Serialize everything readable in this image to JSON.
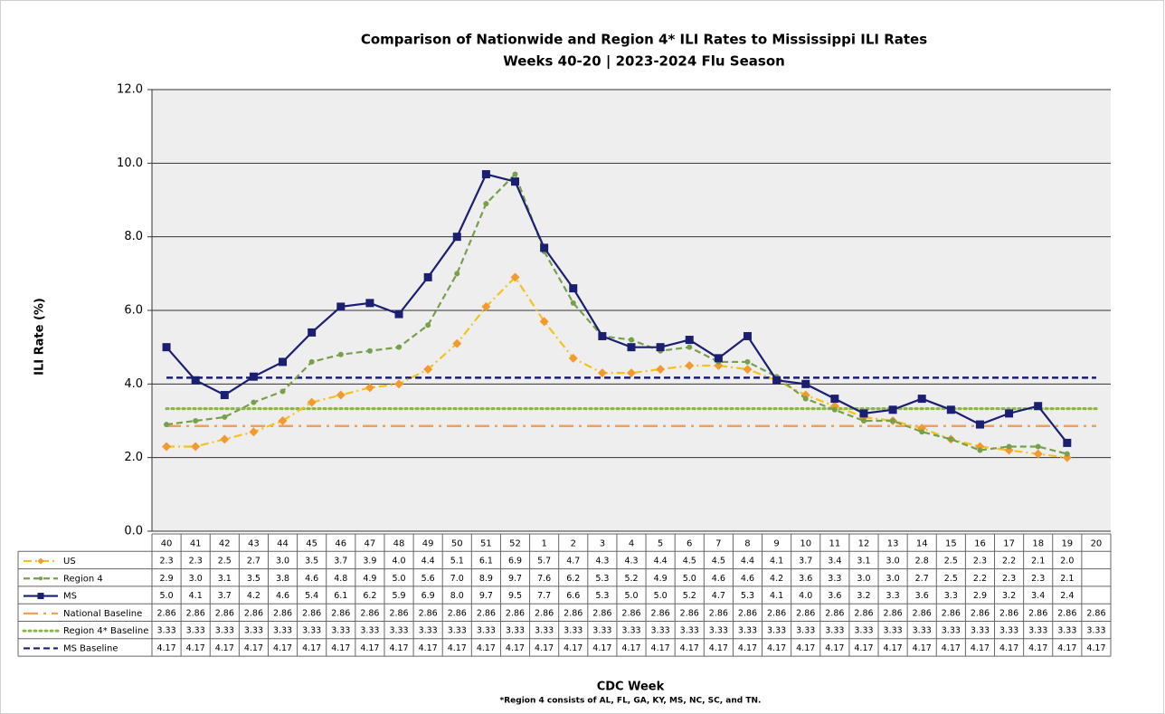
{
  "chart_data": {
    "type": "line",
    "title": "Comparison of Nationwide and Region 4* ILI Rates to Mississippi ILI Rates",
    "subtitle": "Weeks 40-20 | 2023-2024  Flu Season",
    "y_label": "ILI Rate (%)",
    "x_label": "CDC Week",
    "footnote": "*Region 4 consists of AL, FL, GA, KY, MS, NC, SC, and TN.",
    "categories": [
      "40",
      "41",
      "42",
      "43",
      "44",
      "45",
      "46",
      "47",
      "48",
      "49",
      "50",
      "51",
      "52",
      "1",
      "2",
      "3",
      "4",
      "5",
      "6",
      "7",
      "8",
      "9",
      "10",
      "11",
      "12",
      "13",
      "14",
      "15",
      "16",
      "17",
      "18",
      "19",
      "20"
    ],
    "ylim": [
      0,
      12
    ],
    "yticks": [
      {
        "value": 0,
        "label": "0.0"
      },
      {
        "value": 2,
        "label": "2.0"
      },
      {
        "value": 4,
        "label": "4.0"
      },
      {
        "value": 6,
        "label": "6.0"
      },
      {
        "value": 8,
        "label": "8.0"
      },
      {
        "value": 10,
        "label": "10.0"
      },
      {
        "value": 12,
        "label": "12.0"
      }
    ],
    "grid": true,
    "series": [
      {
        "name": "US",
        "color": "#f5c21b",
        "marker_color": "#f39a2e",
        "marker": "diamond",
        "line_style": "dash-dot",
        "values": [
          2.3,
          2.3,
          2.5,
          2.7,
          3.0,
          3.5,
          3.7,
          3.9,
          4.0,
          4.4,
          5.1,
          6.1,
          6.9,
          5.7,
          4.7,
          4.3,
          4.3,
          4.4,
          4.5,
          4.5,
          4.4,
          4.1,
          3.7,
          3.4,
          3.1,
          3.0,
          2.8,
          2.5,
          2.3,
          2.2,
          2.1,
          2.0,
          null
        ],
        "value_labels": [
          "2.3",
          "2.3",
          "2.5",
          "2.7",
          "3.0",
          "3.5",
          "3.7",
          "3.9",
          "4.0",
          "4.4",
          "5.1",
          "6.1",
          "6.9",
          "5.7",
          "4.7",
          "4.3",
          "4.3",
          "4.4",
          "4.5",
          "4.5",
          "4.4",
          "4.1",
          "3.7",
          "3.4",
          "3.1",
          "3.0",
          "2.8",
          "2.5",
          "2.3",
          "2.2",
          "2.1",
          "2.0",
          null
        ]
      },
      {
        "name": "Region 4",
        "color": "#76a04a",
        "marker_color": "#76a04a",
        "marker": "circle",
        "line_style": "dash",
        "values": [
          2.9,
          3.0,
          3.1,
          3.5,
          3.8,
          4.6,
          4.8,
          4.9,
          5.0,
          5.6,
          7.0,
          8.9,
          9.7,
          7.6,
          6.2,
          5.3,
          5.2,
          4.9,
          5.0,
          4.6,
          4.6,
          4.2,
          3.6,
          3.3,
          3.0,
          3.0,
          2.7,
          2.5,
          2.2,
          2.3,
          2.3,
          2.1,
          null
        ],
        "value_labels": [
          "2.9",
          "3.0",
          "3.1",
          "3.5",
          "3.8",
          "4.6",
          "4.8",
          "4.9",
          "5.0",
          "5.6",
          "7.0",
          "8.9",
          "9.7",
          "7.6",
          "6.2",
          "5.3",
          "5.2",
          "4.9",
          "5.0",
          "4.6",
          "4.6",
          "4.2",
          "3.6",
          "3.3",
          "3.0",
          "3.0",
          "2.7",
          "2.5",
          "2.2",
          "2.3",
          "2.3",
          "2.1",
          null
        ]
      },
      {
        "name": "MS",
        "color": "#1b1f72",
        "marker_color": "#1b1f72",
        "marker": "square",
        "line_style": "solid",
        "values": [
          5.0,
          4.1,
          3.7,
          4.2,
          4.6,
          5.4,
          6.1,
          6.2,
          5.9,
          6.9,
          8.0,
          9.7,
          9.5,
          7.7,
          6.6,
          5.3,
          5.0,
          5.0,
          5.2,
          4.7,
          5.3,
          4.1,
          4.0,
          3.6,
          3.2,
          3.3,
          3.6,
          3.3,
          2.9,
          3.2,
          3.4,
          2.4,
          null
        ],
        "value_labels": [
          "5.0",
          "4.1",
          "3.7",
          "4.2",
          "4.6",
          "5.4",
          "6.1",
          "6.2",
          "5.9",
          "6.9",
          "8.0",
          "9.7",
          "9.5",
          "7.7",
          "6.6",
          "5.3",
          "5.0",
          "5.0",
          "5.2",
          "4.7",
          "5.3",
          "4.1",
          "4.0",
          "3.6",
          "3.2",
          "3.3",
          "3.6",
          "3.3",
          "2.9",
          "3.2",
          "3.4",
          "2.4",
          null
        ]
      },
      {
        "name": "National Baseline",
        "color": "#f0a05a",
        "marker": "none",
        "line_style": "long-dash-dot",
        "values": [
          2.86,
          2.86,
          2.86,
          2.86,
          2.86,
          2.86,
          2.86,
          2.86,
          2.86,
          2.86,
          2.86,
          2.86,
          2.86,
          2.86,
          2.86,
          2.86,
          2.86,
          2.86,
          2.86,
          2.86,
          2.86,
          2.86,
          2.86,
          2.86,
          2.86,
          2.86,
          2.86,
          2.86,
          2.86,
          2.86,
          2.86,
          2.86,
          2.86
        ]
      },
      {
        "name": "Region 4* Baseline",
        "color": "#8cb552",
        "marker": "none",
        "line_style": "dot",
        "values": [
          3.33,
          3.33,
          3.33,
          3.33,
          3.33,
          3.33,
          3.33,
          3.33,
          3.33,
          3.33,
          3.33,
          3.33,
          3.33,
          3.33,
          3.33,
          3.33,
          3.33,
          3.33,
          3.33,
          3.33,
          3.33,
          3.33,
          3.33,
          3.33,
          3.33,
          3.33,
          3.33,
          3.33,
          3.33,
          3.33,
          3.33,
          3.33,
          3.33
        ]
      },
      {
        "name": "MS Baseline",
        "color": "#1b1f72",
        "marker": "none",
        "line_style": "dash",
        "values": [
          4.17,
          4.17,
          4.17,
          4.17,
          4.17,
          4.17,
          4.17,
          4.17,
          4.17,
          4.17,
          4.17,
          4.17,
          4.17,
          4.17,
          4.17,
          4.17,
          4.17,
          4.17,
          4.17,
          4.17,
          4.17,
          4.17,
          4.17,
          4.17,
          4.17,
          4.17,
          4.17,
          4.17,
          4.17,
          4.17,
          4.17,
          4.17,
          4.17
        ]
      }
    ]
  }
}
